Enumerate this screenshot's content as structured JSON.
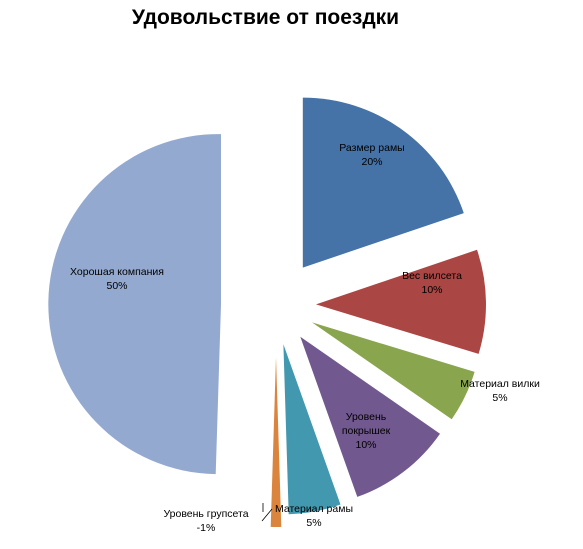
{
  "chart_data": {
    "type": "pie",
    "title": "Удовольствие от поездки",
    "slices": [
      {
        "label": "Размер рамы",
        "lines": [
          "Размер рамы"
        ],
        "value_label": "20%",
        "value": 20,
        "color": "#4572A7",
        "label_inside": true
      },
      {
        "label": "Вес вилсета",
        "lines": [
          "Вес вилсета"
        ],
        "value_label": "10%",
        "value": 10,
        "color": "#AA4643",
        "label_inside": true
      },
      {
        "label": "Материал вилки",
        "lines": [
          "Материал вилки"
        ],
        "value_label": "5%",
        "value": 5,
        "color": "#89A54E",
        "label_inside": false
      },
      {
        "label": "Уровень покрышек",
        "lines": [
          "Уровень",
          "покрышек"
        ],
        "value_label": "10%",
        "value": 10,
        "color": "#71588F",
        "label_inside": true
      },
      {
        "label": "Материал рамы",
        "lines": [
          "Материал рамы"
        ],
        "value_label": "5%",
        "value": 5,
        "color": "#4198AF",
        "label_inside": false
      },
      {
        "label": "Уровень групсета",
        "lines": [
          "Уровень групсета"
        ],
        "value_label": "-1%",
        "value": -1,
        "color": "#DB843D",
        "label_inside": false
      },
      {
        "label": "Хорошая компания",
        "lines": [
          "Хорошая компания"
        ],
        "value_label": "50%",
        "value": 50,
        "color": "#93A9CF",
        "label_inside": true
      }
    ]
  }
}
